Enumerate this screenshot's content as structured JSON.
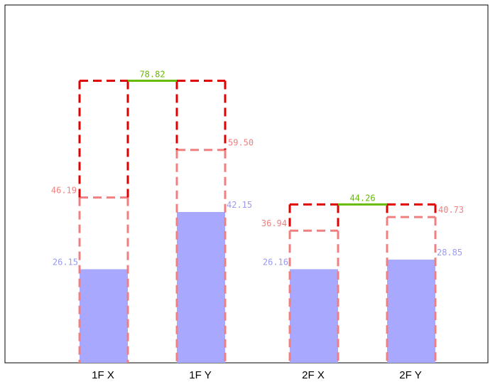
{
  "chart_data": {
    "type": "bar",
    "categories": [
      "1F X",
      "1F Y",
      "2F X",
      "2F Y"
    ],
    "ylim": [
      0,
      100
    ],
    "grid": false,
    "colors": {
      "bar_fill": "#a8a8ff",
      "bar_label": "#9a9af0",
      "dashed_outer": "#e00000",
      "dashed_inner": "#f08080",
      "inner_label": "#f08080",
      "top_line": "#66bb00",
      "top_label": "#66bb00"
    },
    "series": [
      {
        "values": [
          26.15,
          42.15,
          26.16,
          28.85
        ]
      },
      {
        "values": [
          46.19,
          59.5,
          36.94,
          40.73
        ]
      }
    ],
    "group_totals": [
      {
        "categories": [
          "1F X",
          "1F Y"
        ],
        "value": 78.82
      },
      {
        "categories": [
          "2F X",
          "2F Y"
        ],
        "value": 44.26
      }
    ],
    "labels": {
      "bars": [
        "26.15",
        "42.15",
        "26.16",
        "28.85"
      ],
      "inner": [
        "46.19",
        "59.50",
        "36.94",
        "40.73"
      ],
      "totals": [
        "78.82",
        "44.26"
      ]
    }
  }
}
